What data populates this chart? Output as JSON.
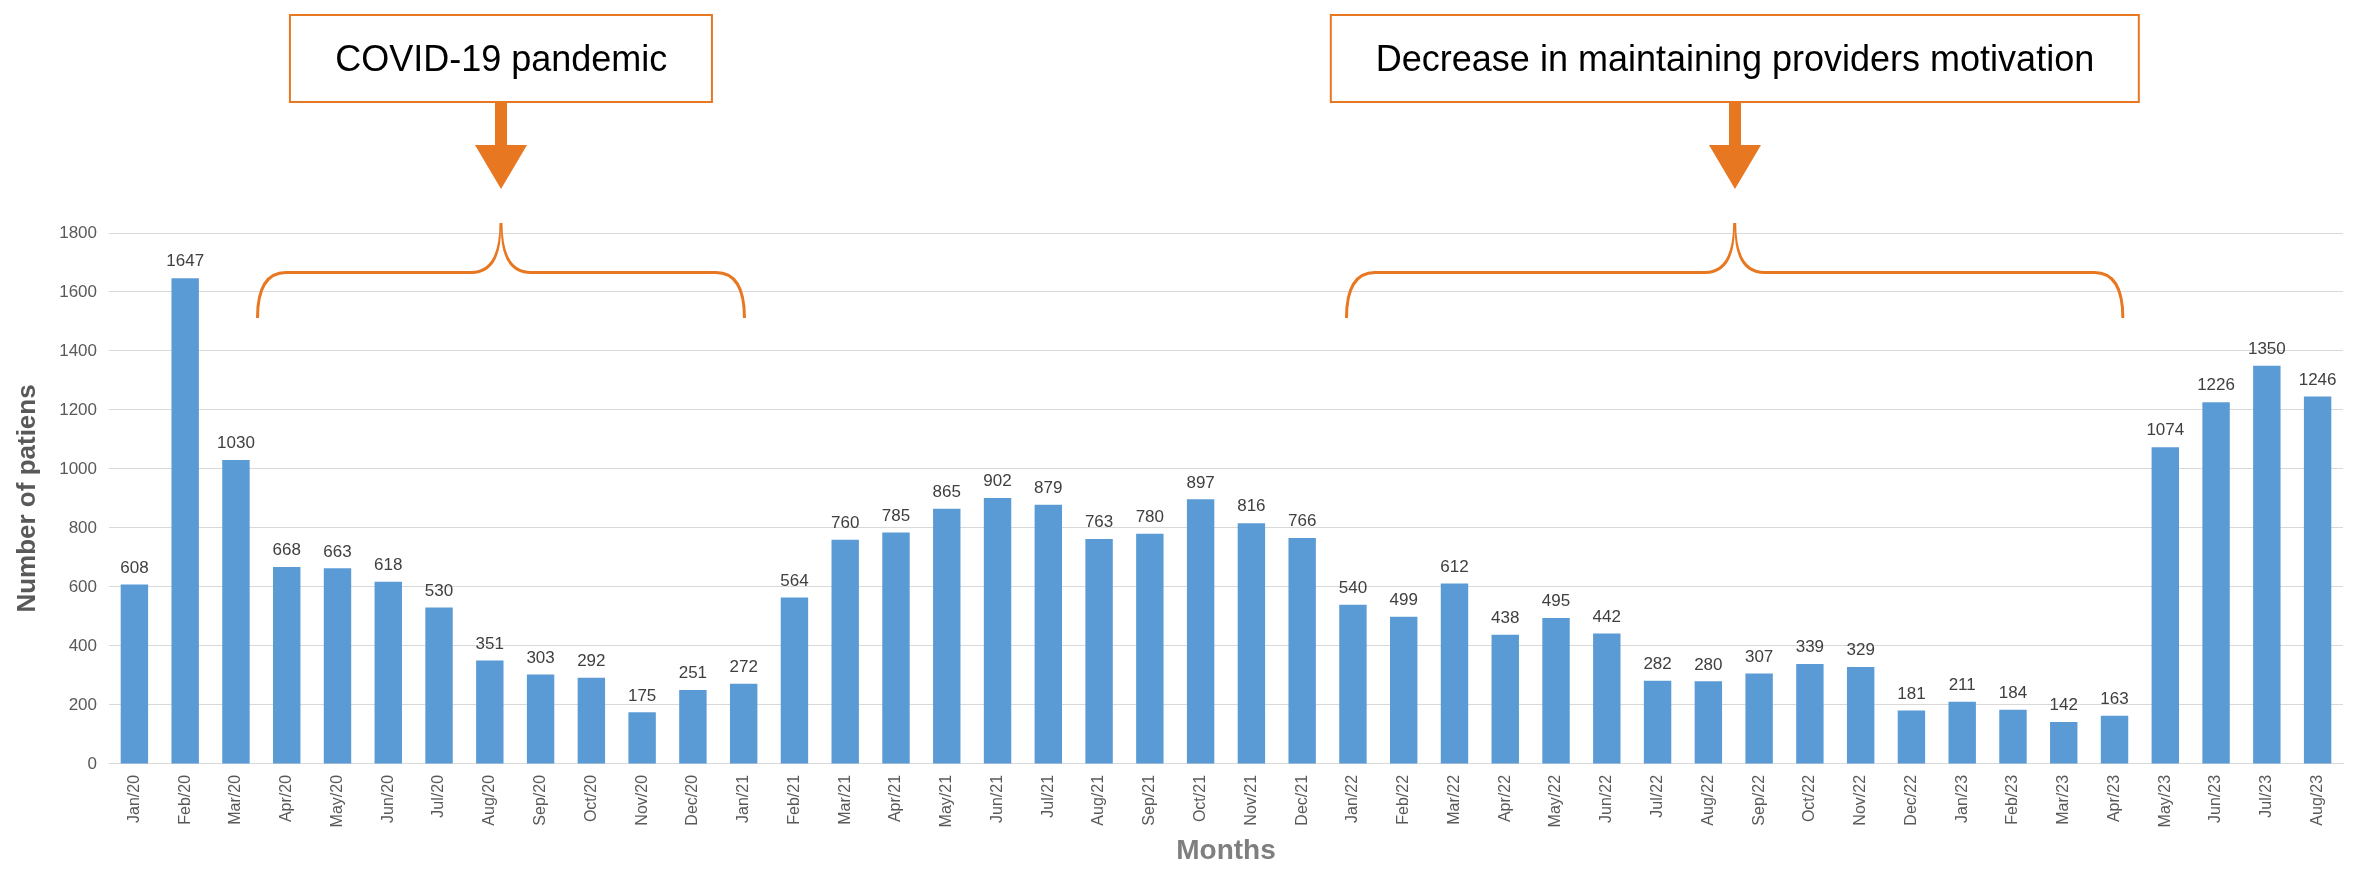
{
  "chart_data": {
    "type": "bar",
    "xlabel": "Months",
    "ylabel": "Number of patiens",
    "categories": [
      "Jan/20",
      "Feb/20",
      "Mar/20",
      "Apr/20",
      "May/20",
      "Jun/20",
      "Jul/20",
      "Aug/20",
      "Sep/20",
      "Oct/20",
      "Nov/20",
      "Dec/20",
      "Jan/21",
      "Feb/21",
      "Mar/21",
      "Apr/21",
      "May/21",
      "Jun/21",
      "Jul/21",
      "Aug/21",
      "Sep/21",
      "Oct/21",
      "Nov/21",
      "Dec/21",
      "Jan/22",
      "Feb/22",
      "Mar/22",
      "Apr/22",
      "May/22",
      "Jun/22",
      "Jul/22",
      "Aug/22",
      "Sep/22",
      "Oct/22",
      "Nov/22",
      "Dec/22",
      "Jan/23",
      "Feb/23",
      "Mar/23",
      "Apr/23",
      "May/23",
      "Jun/23",
      "Jul/23",
      "Aug/23"
    ],
    "values": [
      608,
      1647,
      1030,
      668,
      663,
      618,
      530,
      351,
      303,
      292,
      175,
      251,
      272,
      564,
      760,
      785,
      865,
      902,
      879,
      763,
      780,
      897,
      816,
      766,
      540,
      499,
      612,
      438,
      495,
      442,
      282,
      280,
      307,
      339,
      329,
      181,
      211,
      184,
      142,
      163,
      1074,
      1226,
      1350,
      1246
    ],
    "color": "#5b9bd5",
    "ylim": [
      0,
      1800
    ],
    "yticks": [
      0,
      200,
      400,
      600,
      800,
      1000,
      1200,
      1400,
      1600,
      1800
    ],
    "grid": "y",
    "data_labels": true,
    "annotations": [
      "COVID-19 pandemic",
      "Decrease in maintaining providers motivation"
    ]
  }
}
